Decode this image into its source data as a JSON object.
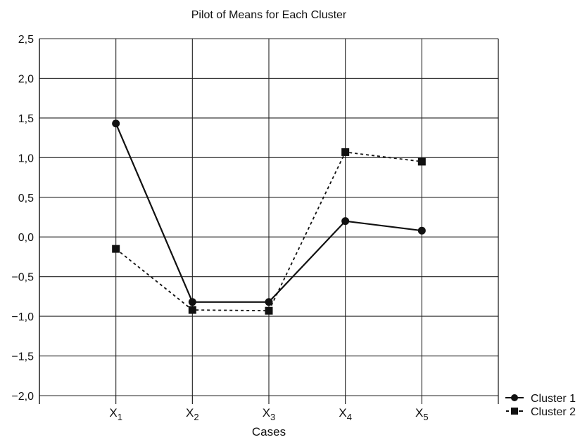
{
  "chart_data": {
    "type": "line",
    "title": "Pilot of Means for Each Cluster",
    "xlabel": "Cases",
    "ylabel": "",
    "categories": [
      {
        "base": "X",
        "sub": "1"
      },
      {
        "base": "X",
        "sub": "2"
      },
      {
        "base": "X",
        "sub": "3"
      },
      {
        "base": "X",
        "sub": "4"
      },
      {
        "base": "X",
        "sub": "5"
      }
    ],
    "y_ticks": [
      "2,5",
      "2,0",
      "1,5",
      "1,0",
      "0,5",
      "0,0",
      "−0,5",
      "−1,0",
      "−1,5",
      "−2,0"
    ],
    "ylim": [
      -2.0,
      2.5
    ],
    "grid": true,
    "legend_position": "bottom-right",
    "series": [
      {
        "name": "Cluster 1",
        "marker": "circle",
        "line": "solid",
        "values": [
          1.43,
          -0.82,
          -0.82,
          0.2,
          0.08
        ]
      },
      {
        "name": "Cluster 2",
        "marker": "square",
        "line": "dashed",
        "values": [
          -0.15,
          -0.92,
          -0.93,
          1.07,
          0.95
        ]
      }
    ]
  }
}
